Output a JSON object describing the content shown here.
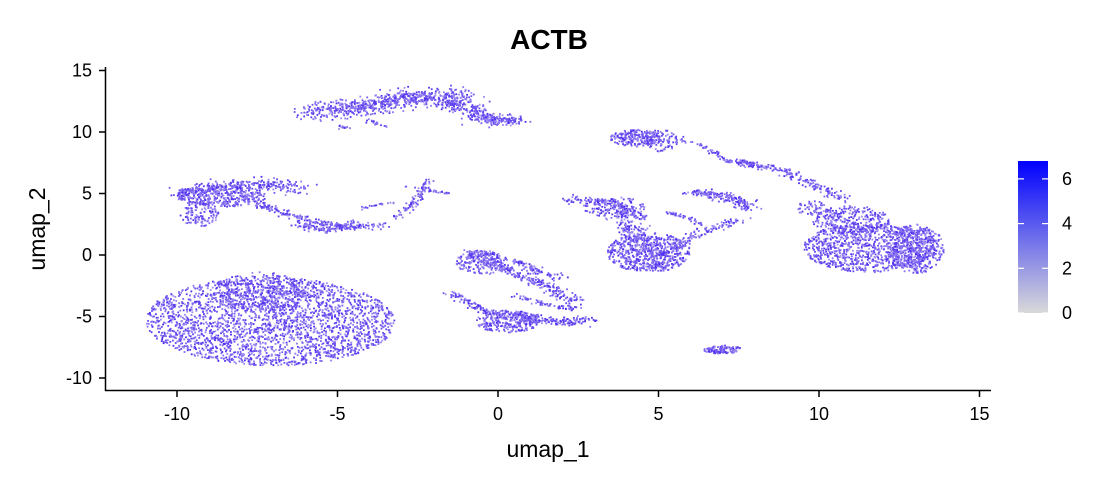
{
  "chart_data": {
    "type": "scatter",
    "title": "ACTB",
    "xlabel": "umap_1",
    "ylabel": "umap_2",
    "xlim": [
      -12.2,
      15.6
    ],
    "ylim": [
      -11.1,
      15.6
    ],
    "x_ticks": [
      -10,
      -5,
      0,
      5,
      10,
      15
    ],
    "y_ticks": [
      -10,
      -5,
      0,
      5,
      10,
      15
    ],
    "x_tick_labels": [
      "-10",
      "-5",
      "0",
      "5",
      "10",
      "15"
    ],
    "y_tick_labels": [
      "-10",
      "-5",
      "0",
      "5",
      "10",
      "15"
    ],
    "grid": false,
    "legend": {
      "placement": "right",
      "type": "colorbar",
      "range": [
        0,
        6.8
      ],
      "ticks": [
        0,
        2,
        4,
        6
      ],
      "tick_labels": [
        "0",
        "2",
        "4",
        "6"
      ],
      "low_color": "#d9d9d9",
      "high_color": "#0000ff"
    },
    "point_color_range": [
      "#c2b5f0",
      "#4a28f0"
    ],
    "clusters": [
      {
        "shape": "ellipse",
        "cx": -7.1,
        "cy": -5.4,
        "rx": 3.9,
        "ry": 3.6,
        "rot": -10,
        "n": 2600
      },
      {
        "shape": "ellipse",
        "cx": -7.4,
        "cy": -3.0,
        "rx": 1.4,
        "ry": 1.6,
        "rot": 0,
        "n": 300
      },
      {
        "shape": "ellipse",
        "cx": 11.6,
        "cy": 0.6,
        "rx": 2.1,
        "ry": 2.0,
        "rot": 0,
        "n": 1000
      },
      {
        "shape": "ellipse",
        "cx": 11.0,
        "cy": 2.8,
        "rx": 1.2,
        "ry": 1.2,
        "rot": 0,
        "n": 300
      },
      {
        "shape": "ellipse",
        "cx": 9.8,
        "cy": 3.8,
        "rx": 0.5,
        "ry": 0.6,
        "rot": 0,
        "n": 60
      },
      {
        "shape": "ellipse",
        "cx": 13.0,
        "cy": 0.5,
        "rx": 0.9,
        "ry": 2.0,
        "rot": 0,
        "n": 400
      },
      {
        "shape": "ellipse",
        "cx": 4.7,
        "cy": 0.2,
        "rx": 1.3,
        "ry": 1.6,
        "rot": 0,
        "n": 520
      },
      {
        "shape": "ellipse",
        "cx": 3.6,
        "cy": 3.9,
        "rx": 1.0,
        "ry": 0.8,
        "rot": 0,
        "n": 120
      },
      {
        "shape": "ellipse",
        "cx": 4.3,
        "cy": 9.5,
        "rx": 0.8,
        "ry": 0.7,
        "rot": 0,
        "n": 200
      },
      {
        "shape": "ellipse",
        "cx": 5.1,
        "cy": 9.3,
        "rx": 0.5,
        "ry": 0.9,
        "rot": 0,
        "n": 100
      },
      {
        "shape": "ellipse",
        "cx": 7.0,
        "cy": -7.7,
        "rx": 0.6,
        "ry": 0.35,
        "rot": 0,
        "n": 120
      },
      {
        "shape": "ellipse",
        "cx": 0.3,
        "cy": -5.4,
        "rx": 1.0,
        "ry": 0.9,
        "rot": 0,
        "n": 300
      },
      {
        "shape": "ellipse",
        "cx": -0.5,
        "cy": -0.6,
        "rx": 0.8,
        "ry": 1.0,
        "rot": 0,
        "n": 200
      },
      {
        "shape": "ellipse",
        "cx": -8.6,
        "cy": 4.8,
        "rx": 1.4,
        "ry": 0.9,
        "rot": 0,
        "n": 400
      },
      {
        "shape": "ellipse",
        "cx": -9.3,
        "cy": 3.3,
        "rx": 0.6,
        "ry": 1.0,
        "rot": 0,
        "n": 120
      },
      {
        "shape": "line",
        "pts": [
          [
            -10.0,
            5.0
          ],
          [
            -8.0,
            5.8
          ],
          [
            -6.0,
            5.4
          ]
        ],
        "w": 0.55,
        "n": 260
      },
      {
        "shape": "line",
        "pts": [
          [
            -7.5,
            4.2
          ],
          [
            -6.0,
            2.8
          ],
          [
            -4.5,
            2.2
          ],
          [
            -3.5,
            2.5
          ]
        ],
        "w": 0.25,
        "n": 200
      },
      {
        "shape": "line",
        "pts": [
          [
            -6.2,
            2.5
          ],
          [
            -5.5,
            2.0
          ],
          [
            -4.5,
            2.6
          ]
        ],
        "w": 0.3,
        "n": 120
      },
      {
        "shape": "line",
        "pts": [
          [
            -3.2,
            3.0
          ],
          [
            -2.5,
            4.5
          ],
          [
            -2.2,
            6.0
          ]
        ],
        "w": 0.2,
        "n": 90
      },
      {
        "shape": "line",
        "pts": [
          [
            -2.9,
            5.6
          ],
          [
            -1.5,
            5.0
          ]
        ],
        "w": 0.1,
        "n": 25
      },
      {
        "shape": "line",
        "pts": [
          [
            -3.2,
            4.3
          ],
          [
            -4.3,
            3.8
          ]
        ],
        "w": 0.1,
        "n": 20
      },
      {
        "shape": "line",
        "pts": [
          [
            -5.8,
            11.7
          ],
          [
            -4.5,
            11.9
          ],
          [
            -3.0,
            12.7
          ],
          [
            -1.5,
            12.9
          ],
          [
            -1.0,
            12.5
          ]
        ],
        "w": 0.7,
        "n": 700
      },
      {
        "shape": "line",
        "pts": [
          [
            -0.8,
            11.2
          ],
          [
            0.0,
            11.0
          ],
          [
            0.6,
            11.0
          ]
        ],
        "w": 0.45,
        "n": 180
      },
      {
        "shape": "line",
        "pts": [
          [
            -1.5,
            12.2
          ],
          [
            -0.5,
            11.6
          ]
        ],
        "w": 0.4,
        "n": 100
      },
      {
        "shape": "line",
        "pts": [
          [
            -5.0,
            10.5
          ],
          [
            -4.5,
            10.2
          ]
        ],
        "w": 0.1,
        "n": 15
      },
      {
        "shape": "line",
        "pts": [
          [
            -4.0,
            11.0
          ],
          [
            -3.5,
            10.4
          ]
        ],
        "w": 0.1,
        "n": 15
      },
      {
        "shape": "line",
        "pts": [
          [
            2.1,
            4.5
          ],
          [
            3.5,
            4.3
          ],
          [
            4.5,
            3.0
          ]
        ],
        "w": 0.3,
        "n": 160
      },
      {
        "shape": "line",
        "pts": [
          [
            4.3,
            2.5
          ],
          [
            4.5,
            1.0
          ],
          [
            5.0,
            -1.0
          ]
        ],
        "w": 0.4,
        "n": 150
      },
      {
        "shape": "line",
        "pts": [
          [
            3.7,
            3.6
          ],
          [
            3.9,
            2.2
          ],
          [
            4.2,
            1.2
          ]
        ],
        "w": 0.3,
        "n": 80
      },
      {
        "shape": "line",
        "pts": [
          [
            5.0,
            0.0
          ],
          [
            6.5,
            2.0
          ],
          [
            7.7,
            3.0
          ]
        ],
        "w": 0.25,
        "n": 140
      },
      {
        "shape": "line",
        "pts": [
          [
            5.3,
            3.5
          ],
          [
            5.9,
            3.0
          ],
          [
            6.4,
            2.4
          ]
        ],
        "w": 0.15,
        "n": 40
      },
      {
        "shape": "line",
        "pts": [
          [
            6.0,
            5.1
          ],
          [
            7.0,
            4.8
          ],
          [
            7.6,
            4.3
          ],
          [
            7.7,
            3.8
          ]
        ],
        "w": 0.35,
        "n": 180
      },
      {
        "shape": "line",
        "pts": [
          [
            5.5,
            9.6
          ],
          [
            6.5,
            8.7
          ],
          [
            7.2,
            7.5
          ]
        ],
        "w": 0.15,
        "n": 50
      },
      {
        "shape": "line",
        "pts": [
          [
            7.2,
            7.6
          ],
          [
            8.8,
            7.0
          ],
          [
            10.0,
            5.5
          ],
          [
            10.8,
            4.5
          ]
        ],
        "w": 0.25,
        "n": 200
      },
      {
        "shape": "line",
        "pts": [
          [
            7.5,
            7.7
          ],
          [
            8.0,
            7.4
          ]
        ],
        "w": 0.1,
        "n": 30
      },
      {
        "shape": "line",
        "pts": [
          [
            -0.9,
            0.3
          ],
          [
            0.5,
            -1.5
          ],
          [
            1.5,
            -2.5
          ],
          [
            2.5,
            -4.0
          ]
        ],
        "w": 0.35,
        "n": 240
      },
      {
        "shape": "line",
        "pts": [
          [
            0.5,
            -0.5
          ],
          [
            1.3,
            -1.3
          ],
          [
            2.0,
            -2.0
          ]
        ],
        "w": 0.25,
        "n": 80
      },
      {
        "shape": "line",
        "pts": [
          [
            -1.5,
            -3.0
          ],
          [
            -0.5,
            -4.5
          ],
          [
            0.5,
            -5.0
          ]
        ],
        "w": 0.25,
        "n": 110
      },
      {
        "shape": "line",
        "pts": [
          [
            0.8,
            -5.0
          ],
          [
            2.0,
            -5.5
          ],
          [
            2.9,
            -5.2
          ]
        ],
        "w": 0.3,
        "n": 140
      },
      {
        "shape": "line",
        "pts": [
          [
            0.5,
            -3.3
          ],
          [
            1.6,
            -4.1
          ],
          [
            2.4,
            -4.4
          ]
        ],
        "w": 0.2,
        "n": 60
      }
    ]
  }
}
